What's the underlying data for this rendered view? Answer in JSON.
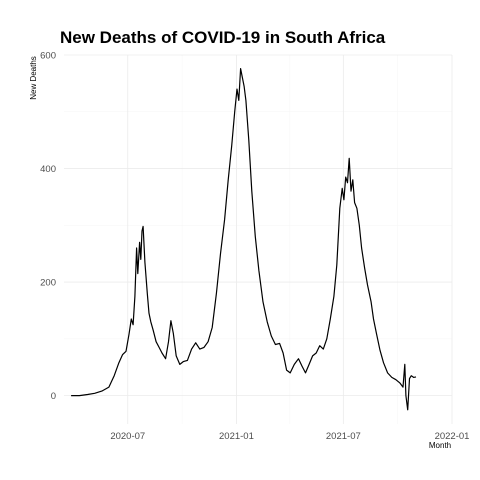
{
  "chart_data": {
    "type": "line",
    "title": "New Deaths of COVID-19 in South Africa",
    "xlabel": "Month",
    "ylabel": "New Deaths",
    "ylim": [
      -50,
      600
    ],
    "xlim": [
      "2020-03-15",
      "2022-01-01"
    ],
    "grid": true,
    "x_ticks": [
      {
        "date": "2020-07-01",
        "label": "2020-07"
      },
      {
        "date": "2021-01-01",
        "label": "2021-01"
      },
      {
        "date": "2021-07-01",
        "label": "2021-07"
      },
      {
        "date": "2022-01-01",
        "label": "2022-01"
      }
    ],
    "y_ticks": [
      0,
      200,
      400,
      600
    ],
    "series": [
      {
        "color": "#000000",
        "points": [
          [
            "2020-03-27",
            0
          ],
          [
            "2020-04-10",
            0
          ],
          [
            "2020-04-24",
            2
          ],
          [
            "2020-05-06",
            4
          ],
          [
            "2020-05-18",
            8
          ],
          [
            "2020-05-30",
            15
          ],
          [
            "2020-06-08",
            35
          ],
          [
            "2020-06-16",
            58
          ],
          [
            "2020-06-22",
            72
          ],
          [
            "2020-06-28",
            78
          ],
          [
            "2020-07-03",
            108
          ],
          [
            "2020-07-07",
            135
          ],
          [
            "2020-07-10",
            125
          ],
          [
            "2020-07-13",
            175
          ],
          [
            "2020-07-16",
            260
          ],
          [
            "2020-07-18",
            215
          ],
          [
            "2020-07-21",
            270
          ],
          [
            "2020-07-23",
            240
          ],
          [
            "2020-07-25",
            290
          ],
          [
            "2020-07-27",
            298
          ],
          [
            "2020-07-30",
            235
          ],
          [
            "2020-08-03",
            180
          ],
          [
            "2020-08-06",
            145
          ],
          [
            "2020-08-09",
            130
          ],
          [
            "2020-08-13",
            115
          ],
          [
            "2020-08-18",
            95
          ],
          [
            "2020-08-23",
            85
          ],
          [
            "2020-08-28",
            75
          ],
          [
            "2020-09-03",
            65
          ],
          [
            "2020-09-08",
            95
          ],
          [
            "2020-09-12",
            132
          ],
          [
            "2020-09-16",
            110
          ],
          [
            "2020-09-21",
            70
          ],
          [
            "2020-09-27",
            55
          ],
          [
            "2020-10-03",
            60
          ],
          [
            "2020-10-10",
            62
          ],
          [
            "2020-10-17",
            82
          ],
          [
            "2020-10-24",
            93
          ],
          [
            "2020-10-31",
            82
          ],
          [
            "2020-11-07",
            85
          ],
          [
            "2020-11-14",
            95
          ],
          [
            "2020-11-21",
            120
          ],
          [
            "2020-11-28",
            180
          ],
          [
            "2020-12-05",
            250
          ],
          [
            "2020-12-12",
            310
          ],
          [
            "2020-12-18",
            380
          ],
          [
            "2020-12-24",
            440
          ],
          [
            "2020-12-29",
            500
          ],
          [
            "2021-01-02",
            540
          ],
          [
            "2021-01-05",
            520
          ],
          [
            "2021-01-08",
            576
          ],
          [
            "2021-01-11",
            560
          ],
          [
            "2021-01-14",
            545
          ],
          [
            "2021-01-17",
            520
          ],
          [
            "2021-01-22",
            450
          ],
          [
            "2021-01-27",
            360
          ],
          [
            "2021-02-02",
            280
          ],
          [
            "2021-02-08",
            220
          ],
          [
            "2021-02-15",
            165
          ],
          [
            "2021-02-22",
            130
          ],
          [
            "2021-03-01",
            105
          ],
          [
            "2021-03-08",
            90
          ],
          [
            "2021-03-15",
            92
          ],
          [
            "2021-03-21",
            75
          ],
          [
            "2021-03-27",
            45
          ],
          [
            "2021-04-02",
            40
          ],
          [
            "2021-04-09",
            55
          ],
          [
            "2021-04-16",
            65
          ],
          [
            "2021-04-22",
            52
          ],
          [
            "2021-04-28",
            40
          ],
          [
            "2021-05-04",
            55
          ],
          [
            "2021-05-10",
            70
          ],
          [
            "2021-05-16",
            75
          ],
          [
            "2021-05-22",
            88
          ],
          [
            "2021-05-28",
            82
          ],
          [
            "2021-06-03",
            100
          ],
          [
            "2021-06-09",
            135
          ],
          [
            "2021-06-15",
            175
          ],
          [
            "2021-06-20",
            230
          ],
          [
            "2021-06-25",
            330
          ],
          [
            "2021-06-29",
            365
          ],
          [
            "2021-07-02",
            345
          ],
          [
            "2021-07-05",
            385
          ],
          [
            "2021-07-08",
            375
          ],
          [
            "2021-07-11",
            418
          ],
          [
            "2021-07-14",
            360
          ],
          [
            "2021-07-17",
            380
          ],
          [
            "2021-07-20",
            340
          ],
          [
            "2021-07-24",
            330
          ],
          [
            "2021-07-28",
            300
          ],
          [
            "2021-08-01",
            260
          ],
          [
            "2021-08-06",
            225
          ],
          [
            "2021-08-11",
            195
          ],
          [
            "2021-08-17",
            165
          ],
          [
            "2021-08-21",
            135
          ],
          [
            "2021-08-26",
            110
          ],
          [
            "2021-09-01",
            80
          ],
          [
            "2021-09-07",
            58
          ],
          [
            "2021-09-14",
            40
          ],
          [
            "2021-09-21",
            32
          ],
          [
            "2021-09-28",
            28
          ],
          [
            "2021-10-05",
            22
          ],
          [
            "2021-10-10",
            15
          ],
          [
            "2021-10-13",
            55
          ],
          [
            "2021-10-15",
            0
          ],
          [
            "2021-10-18",
            -25
          ],
          [
            "2021-10-21",
            30
          ],
          [
            "2021-10-24",
            35
          ],
          [
            "2021-10-28",
            32
          ],
          [
            "2021-11-01",
            33
          ]
        ]
      }
    ]
  }
}
